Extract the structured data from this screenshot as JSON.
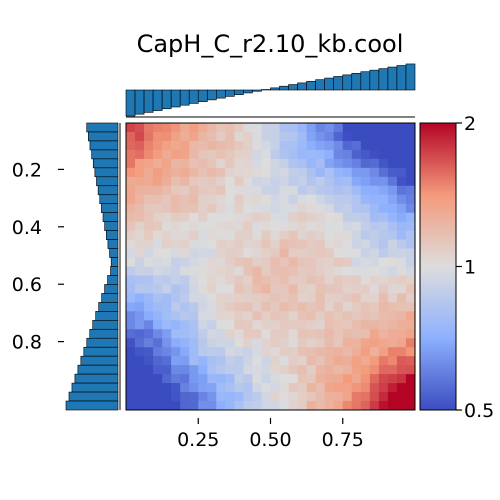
{
  "chart_data": {
    "type": "heatmap",
    "title": "CapH_C_r2.10_kb.cool",
    "xlabel": "",
    "ylabel": "",
    "x_range": [
      0,
      1
    ],
    "y_range": [
      0,
      1
    ],
    "x_ticks": [
      "0.25",
      "0.50",
      "0.75"
    ],
    "y_ticks": [
      "0.2",
      "0.4",
      "0.6",
      "0.8"
    ],
    "grid": "none",
    "colorbar": {
      "colormap": "coolwarm",
      "scale": "log",
      "min": 0.5,
      "max": 2,
      "ticks": [
        "0.5",
        "1",
        "2"
      ]
    },
    "grid_size": 32,
    "value_description": "log2 observed/expected; approx. grid of 32x32 bins, top-left (0,0) to bottom-right (1,1)",
    "matrix_model": {
      "corner_top_left": 0.85,
      "corner_top_right": -1.0,
      "corner_bottom_left": -1.0,
      "anti_diagonal_mid": 0.45,
      "corner_bottom_right": 1.0
    },
    "top_marginal": {
      "type": "bar",
      "description": "column marginal, decreasing then increasing",
      "start": -1.0,
      "mid": 0.0,
      "end": 1.0
    },
    "left_marginal": {
      "type": "bar",
      "description": "row marginal, increasing top to bottom",
      "start": 0.2,
      "end": 1.0
    }
  },
  "colors": {
    "bar_fill": "#1f77b4",
    "bar_edge": "#000000",
    "cmap_low": "#3b4cc0",
    "cmap_mid": "#dddddd",
    "cmap_high": "#b40426"
  }
}
